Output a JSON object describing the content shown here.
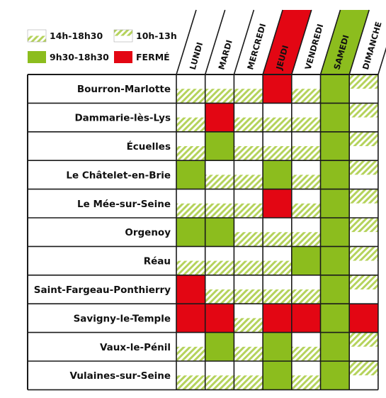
{
  "legend": [
    {
      "label": "14h-18h30",
      "pattern": "pm"
    },
    {
      "label": "10h-13h",
      "pattern": "am"
    },
    {
      "label": "9h30-18h30",
      "pattern": "full"
    },
    {
      "label": "FERMÉ",
      "pattern": "closed"
    }
  ],
  "days": [
    "LUNDI",
    "MARDI",
    "MERCREDI",
    "JEUDI",
    "VENDREDI",
    "SAMEDI",
    "DIMANCHE"
  ],
  "towns": [
    {
      "name": "Bourron-Marlotte",
      "schedule": [
        "pm",
        "pm",
        "pm",
        "closed",
        "pm",
        "full",
        "am"
      ]
    },
    {
      "name": "Dammarie-lès-Lys",
      "schedule": [
        "pm",
        "closed",
        "pm",
        "pm",
        "pm",
        "full",
        "am"
      ]
    },
    {
      "name": "Écuelles",
      "schedule": [
        "pm",
        "full",
        "pm",
        "pm",
        "pm",
        "full",
        "am"
      ]
    },
    {
      "name": "Le Châtelet-en-Brie",
      "schedule": [
        "full",
        "pm",
        "pm",
        "full",
        "pm",
        "full",
        "am"
      ]
    },
    {
      "name": "Le Mée-sur-Seine",
      "schedule": [
        "pm",
        "pm",
        "pm",
        "closed",
        "pm",
        "full",
        "am"
      ]
    },
    {
      "name": "Orgenoy",
      "schedule": [
        "full",
        "full",
        "pm",
        "pm",
        "pm",
        "full",
        "am"
      ]
    },
    {
      "name": "Réau",
      "schedule": [
        "pm",
        "pm",
        "pm",
        "pm",
        "full",
        "full",
        "am"
      ]
    },
    {
      "name": "Saint-Fargeau-Ponthierry",
      "schedule": [
        "closed",
        "pm",
        "pm",
        "pm",
        "pm",
        "full",
        "am"
      ]
    },
    {
      "name": "Savigny-le-Temple",
      "schedule": [
        "closed",
        "closed",
        "pm",
        "closed",
        "closed",
        "full",
        "closed"
      ]
    },
    {
      "name": "Vaux-le-Pénil",
      "schedule": [
        "pm",
        "full",
        "pm",
        "full",
        "pm",
        "full",
        "am"
      ]
    },
    {
      "name": "Vulaines-sur-Seine",
      "schedule": [
        "pm",
        "pm",
        "pm",
        "full",
        "pm",
        "full",
        "am"
      ]
    }
  ],
  "colors": {
    "green": "#8cbd1e",
    "red": "#e30613",
    "stripe": "#b5d35c",
    "line": "#1a1a1a"
  }
}
